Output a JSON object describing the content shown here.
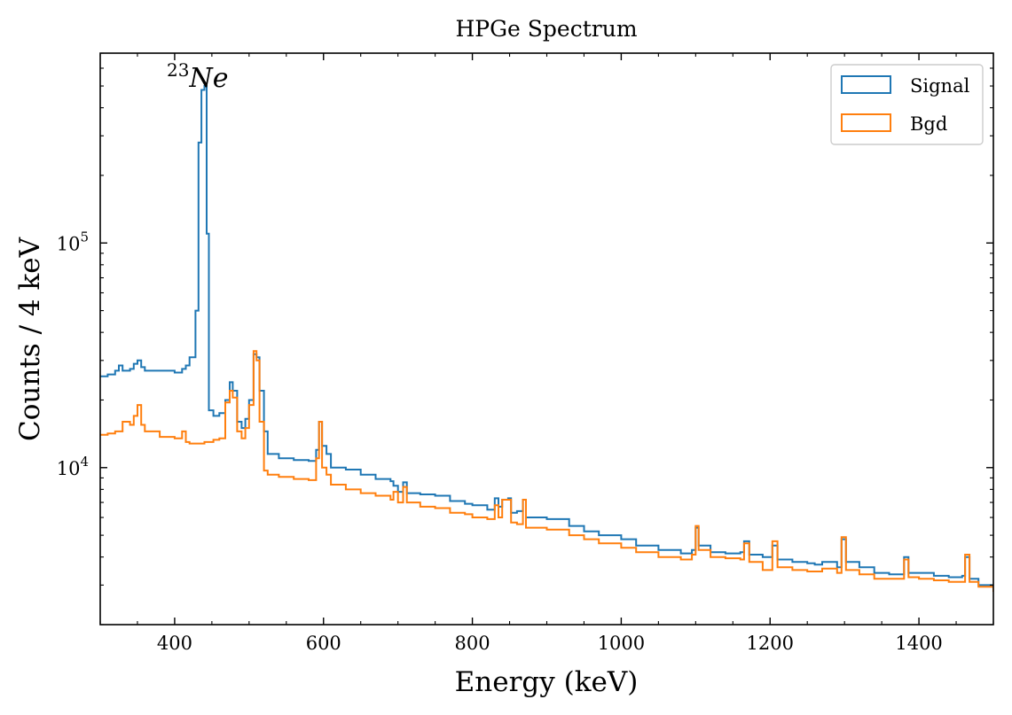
{
  "chart_data": {
    "type": "line",
    "style": "step",
    "title": "HPGe Spectrum",
    "xlabel": "Energy (keV)",
    "ylabel": "Counts / 4 keV",
    "xscale": "linear",
    "yscale": "log",
    "xlim": [
      300,
      1500
    ],
    "ylim": [
      2000,
      700000
    ],
    "xticks": [
      400,
      600,
      800,
      1000,
      1200,
      1400
    ],
    "xtick_labels": [
      "400",
      "600",
      "800",
      "1000",
      "1200",
      "1400"
    ],
    "yticks_major": [
      10000,
      100000
    ],
    "ytick_labels": [
      {
        "base": "10",
        "exp": "4"
      },
      {
        "base": "10",
        "exp": "5"
      }
    ],
    "annotation": {
      "sup": "23",
      "text": "Ne",
      "x": 420,
      "y": 520000
    },
    "legend": {
      "position": "top-right"
    },
    "series": [
      {
        "name": "Signal",
        "color": "#1f77b4",
        "points": [
          [
            300,
            25500
          ],
          [
            310,
            26000
          ],
          [
            320,
            27000
          ],
          [
            325,
            28500
          ],
          [
            330,
            27000
          ],
          [
            340,
            27500
          ],
          [
            345,
            29000
          ],
          [
            350,
            30000
          ],
          [
            355,
            28000
          ],
          [
            360,
            27000
          ],
          [
            380,
            27000
          ],
          [
            400,
            26500
          ],
          [
            410,
            27500
          ],
          [
            415,
            28500
          ],
          [
            420,
            31000
          ],
          [
            428,
            50000
          ],
          [
            432,
            280000
          ],
          [
            436,
            480000
          ],
          [
            440,
            500000
          ],
          [
            443,
            110000
          ],
          [
            446,
            18000
          ],
          [
            452,
            17000
          ],
          [
            460,
            17500
          ],
          [
            468,
            20000
          ],
          [
            474,
            24000
          ],
          [
            478,
            22000
          ],
          [
            484,
            16000
          ],
          [
            490,
            15000
          ],
          [
            495,
            16500
          ],
          [
            500,
            20000
          ],
          [
            506,
            32000
          ],
          [
            510,
            31000
          ],
          [
            514,
            22000
          ],
          [
            520,
            14500
          ],
          [
            525,
            11500
          ],
          [
            540,
            11000
          ],
          [
            560,
            10800
          ],
          [
            580,
            10700
          ],
          [
            590,
            12000
          ],
          [
            594,
            16000
          ],
          [
            598,
            12500
          ],
          [
            604,
            11500
          ],
          [
            610,
            10000
          ],
          [
            630,
            9800
          ],
          [
            650,
            9300
          ],
          [
            670,
            8900
          ],
          [
            690,
            8700
          ],
          [
            694,
            8300
          ],
          [
            700,
            7800
          ],
          [
            707,
            8600
          ],
          [
            712,
            7700
          ],
          [
            730,
            7600
          ],
          [
            750,
            7500
          ],
          [
            770,
            7100
          ],
          [
            790,
            6900
          ],
          [
            800,
            6800
          ],
          [
            820,
            6500
          ],
          [
            830,
            7300
          ],
          [
            835,
            6700
          ],
          [
            840,
            7200
          ],
          [
            848,
            7300
          ],
          [
            852,
            6300
          ],
          [
            860,
            6400
          ],
          [
            868,
            7200
          ],
          [
            872,
            6000
          ],
          [
            900,
            5900
          ],
          [
            930,
            5500
          ],
          [
            950,
            5200
          ],
          [
            970,
            5000
          ],
          [
            1000,
            4800
          ],
          [
            1020,
            4500
          ],
          [
            1050,
            4300
          ],
          [
            1080,
            4150
          ],
          [
            1095,
            4300
          ],
          [
            1100,
            5400
          ],
          [
            1104,
            4500
          ],
          [
            1120,
            4200
          ],
          [
            1140,
            4150
          ],
          [
            1160,
            4200
          ],
          [
            1165,
            4700
          ],
          [
            1172,
            4100
          ],
          [
            1190,
            4000
          ],
          [
            1203,
            4500
          ],
          [
            1210,
            3900
          ],
          [
            1230,
            3800
          ],
          [
            1250,
            3750
          ],
          [
            1260,
            3700
          ],
          [
            1270,
            3800
          ],
          [
            1290,
            3600
          ],
          [
            1296,
            4800
          ],
          [
            1302,
            3800
          ],
          [
            1320,
            3600
          ],
          [
            1340,
            3400
          ],
          [
            1360,
            3350
          ],
          [
            1375,
            3350
          ],
          [
            1380,
            4000
          ],
          [
            1386,
            3400
          ],
          [
            1400,
            3400
          ],
          [
            1420,
            3300
          ],
          [
            1440,
            3250
          ],
          [
            1458,
            3300
          ],
          [
            1462,
            4000
          ],
          [
            1468,
            3200
          ],
          [
            1480,
            3000
          ],
          [
            1500,
            2900
          ]
        ]
      },
      {
        "name": "Bgd",
        "color": "#ff7f0e",
        "points": [
          [
            300,
            14000
          ],
          [
            310,
            14200
          ],
          [
            320,
            14500
          ],
          [
            330,
            16000
          ],
          [
            340,
            15500
          ],
          [
            345,
            17000
          ],
          [
            350,
            19000
          ],
          [
            355,
            15500
          ],
          [
            360,
            14500
          ],
          [
            380,
            13700
          ],
          [
            400,
            13500
          ],
          [
            410,
            14500
          ],
          [
            415,
            13000
          ],
          [
            420,
            12800
          ],
          [
            440,
            13000
          ],
          [
            446,
            13000
          ],
          [
            452,
            13300
          ],
          [
            460,
            13500
          ],
          [
            468,
            19500
          ],
          [
            474,
            22000
          ],
          [
            478,
            20500
          ],
          [
            484,
            14500
          ],
          [
            490,
            13500
          ],
          [
            495,
            15000
          ],
          [
            500,
            19000
          ],
          [
            506,
            33000
          ],
          [
            510,
            30000
          ],
          [
            514,
            16000
          ],
          [
            520,
            9700
          ],
          [
            525,
            9300
          ],
          [
            540,
            9100
          ],
          [
            560,
            8900
          ],
          [
            580,
            8800
          ],
          [
            590,
            11000
          ],
          [
            594,
            16000
          ],
          [
            598,
            10000
          ],
          [
            604,
            9300
          ],
          [
            610,
            8400
          ],
          [
            630,
            8000
          ],
          [
            650,
            7700
          ],
          [
            670,
            7500
          ],
          [
            690,
            7200
          ],
          [
            694,
            7800
          ],
          [
            700,
            7000
          ],
          [
            707,
            8200
          ],
          [
            712,
            7000
          ],
          [
            730,
            6700
          ],
          [
            750,
            6600
          ],
          [
            770,
            6300
          ],
          [
            790,
            6200
          ],
          [
            800,
            6000
          ],
          [
            820,
            5900
          ],
          [
            830,
            6800
          ],
          [
            835,
            6000
          ],
          [
            840,
            7200
          ],
          [
            848,
            7200
          ],
          [
            852,
            5700
          ],
          [
            860,
            5600
          ],
          [
            868,
            7200
          ],
          [
            872,
            5400
          ],
          [
            900,
            5300
          ],
          [
            930,
            5000
          ],
          [
            950,
            4800
          ],
          [
            970,
            4600
          ],
          [
            1000,
            4400
          ],
          [
            1020,
            4200
          ],
          [
            1050,
            4000
          ],
          [
            1080,
            3900
          ],
          [
            1095,
            4100
          ],
          [
            1100,
            5500
          ],
          [
            1104,
            4300
          ],
          [
            1120,
            4000
          ],
          [
            1140,
            3950
          ],
          [
            1160,
            3900
          ],
          [
            1165,
            4600
          ],
          [
            1172,
            3800
          ],
          [
            1190,
            3500
          ],
          [
            1203,
            4700
          ],
          [
            1210,
            3600
          ],
          [
            1230,
            3500
          ],
          [
            1250,
            3450
          ],
          [
            1260,
            3450
          ],
          [
            1270,
            3550
          ],
          [
            1290,
            3400
          ],
          [
            1296,
            4900
          ],
          [
            1302,
            3500
          ],
          [
            1320,
            3350
          ],
          [
            1340,
            3200
          ],
          [
            1360,
            3200
          ],
          [
            1375,
            3200
          ],
          [
            1380,
            3900
          ],
          [
            1386,
            3250
          ],
          [
            1400,
            3200
          ],
          [
            1420,
            3150
          ],
          [
            1440,
            3100
          ],
          [
            1458,
            3100
          ],
          [
            1462,
            4100
          ],
          [
            1468,
            3100
          ],
          [
            1480,
            2950
          ],
          [
            1500,
            2800
          ]
        ]
      }
    ]
  }
}
